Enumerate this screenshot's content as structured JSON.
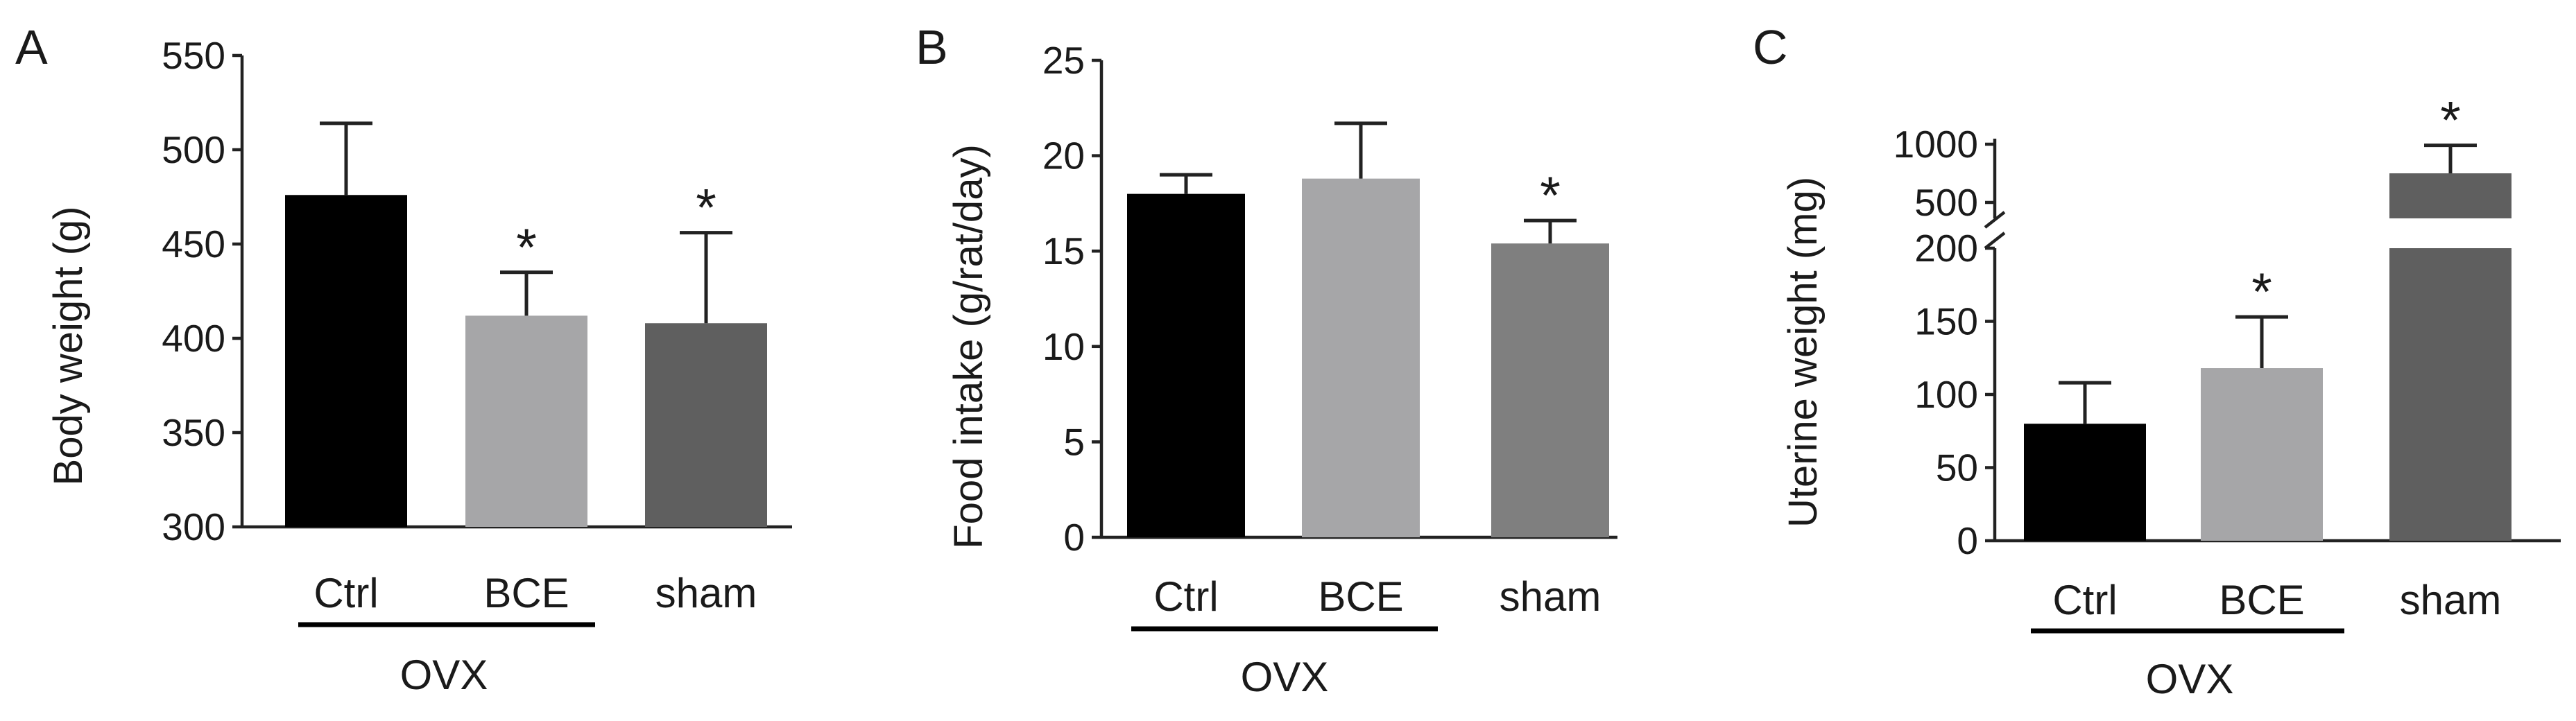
{
  "chart_data": [
    {
      "type": "bar",
      "panel": "A",
      "ylabel": "Body weight (g)",
      "ylim": [
        300,
        550
      ],
      "yticks": [
        "300",
        "350",
        "400",
        "450",
        "500",
        "550"
      ],
      "categories": [
        "Ctrl",
        "BCE",
        "sham"
      ],
      "values": [
        476,
        412,
        408
      ],
      "errors": [
        38,
        23,
        48
      ],
      "colors": [
        "#000000",
        "#a6a6a8",
        "#5f5f5f"
      ],
      "significance": [
        "",
        "*",
        "*"
      ],
      "group_label": "OVX"
    },
    {
      "type": "bar",
      "panel": "B",
      "ylabel": "Food intake (g/rat/day)",
      "ylim": [
        0,
        25
      ],
      "yticks": [
        "0",
        "5",
        "10",
        "15",
        "20",
        "25"
      ],
      "categories": [
        "Ctrl",
        "BCE",
        "sham"
      ],
      "values": [
        18,
        18.8,
        15.4
      ],
      "errors": [
        1,
        2.9,
        1.2
      ],
      "colors": [
        "#000000",
        "#a6a6a8",
        "#7f7f7f"
      ],
      "significance": [
        "",
        "",
        "*"
      ],
      "group_label": "OVX"
    },
    {
      "type": "bar",
      "panel": "C",
      "ylabel": "Uterine weight (mg)",
      "ylim": [
        0,
        1000
      ],
      "axis_break": [
        200,
        500
      ],
      "yticks": [
        "0",
        "50",
        "100",
        "150",
        "200",
        "500",
        "1000"
      ],
      "categories": [
        "Ctrl",
        "BCE",
        "sham"
      ],
      "values": [
        80,
        118,
        750
      ],
      "errors": [
        28,
        35,
        240
      ],
      "colors": [
        "#000000",
        "#a6a6a8",
        "#5f5f5f"
      ],
      "significance": [
        "",
        "*",
        "*"
      ],
      "group_label": "OVX"
    }
  ]
}
